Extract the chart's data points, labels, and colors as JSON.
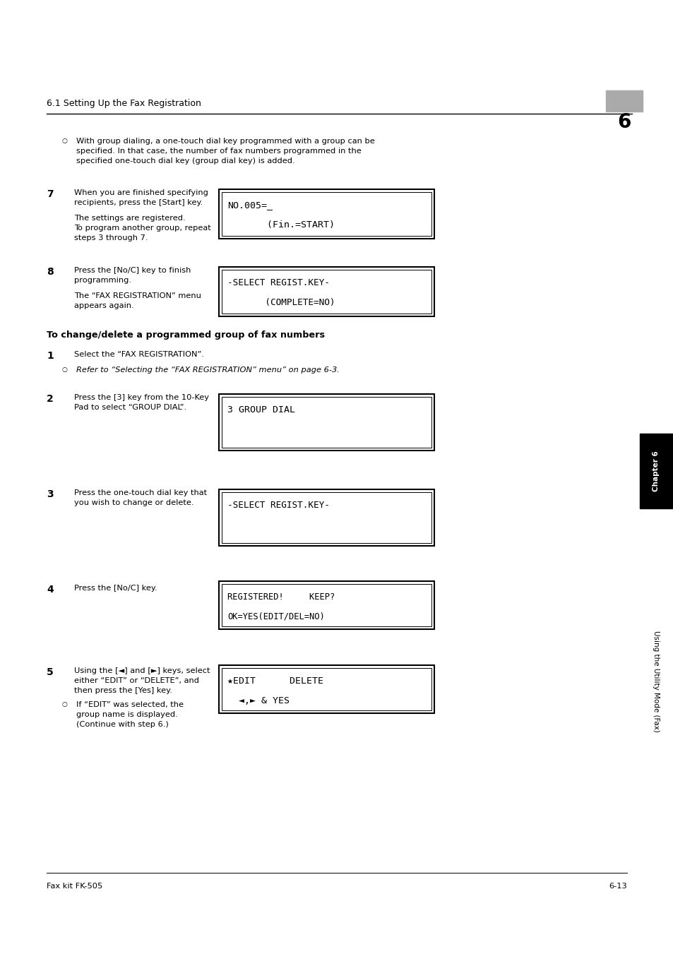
{
  "bg_color": "#ffffff",
  "page_width": 9.54,
  "page_height": 13.51,
  "header_text": "6.1 Setting Up the Fax Registration",
  "header_num": "6",
  "header_num_bg": "#b0b0b0",
  "bullet_text_1a": "With group dialing, a one-touch dial key programmed with a group can be",
  "bullet_text_1b": "specified. In that case, the number of fax numbers programmed in the",
  "bullet_text_1c": "specified one-touch dial key (group dial key) is added.",
  "step7_num": "7",
  "step7_text_a": "When you are finished specifying",
  "step7_text_b": "recipients, press the [Start] key.",
  "step7_text_c": "The settings are registered.",
  "step7_text_d": "To program another group, repeat",
  "step7_text_e": "steps 3 through 7.",
  "box1_line1": "NO.005=_",
  "box1_line2": "       (Fin.=START)",
  "step8_num": "8",
  "step8_text_a": "Press the [No/C] key to finish",
  "step8_text_b": "programming.",
  "step8_text_c": "The “FAX REGISTRATION” menu",
  "step8_text_d": "appears again.",
  "box2_line1": "-SELECT REGIST.KEY-",
  "box2_line2": "       (COMPLETE=NO)",
  "section_title": "To change/delete a programmed group of fax numbers",
  "step1_num": "1",
  "step1_text": "Select the “FAX REGISTRATION”.",
  "step1_bullet": "Refer to “Selecting the “FAX REGISTRATION” menu” on page 6-3.",
  "step2_num": "2",
  "step2_text_a": "Press the [3] key from the 10-Key",
  "step2_text_b": "Pad to select “GROUP DIAL”.",
  "box3_line1": "3 GROUP DIAL",
  "step3_num": "3",
  "step3_text_a": "Press the one-touch dial key that",
  "step3_text_b": "you wish to change or delete.",
  "box4_line1": "-SELECT REGIST.KEY-",
  "step4_num": "4",
  "step4_text": "Press the [No/C] key.",
  "box5_line1": "REGISTERED!     KEEP?",
  "box5_line2": "OK=YES(EDIT/DEL=NO)",
  "step5_num": "5",
  "step5_text_a": "Using the [◄] and [►] keys, select",
  "step5_text_b": "either “EDIT” or “DELETE”, and",
  "step5_text_c": "then press the [Yes] key.",
  "step5_bullet_a": "If “EDIT” was selected, the",
  "step5_bullet_b": "group name is displayed.",
  "step5_bullet_c": "(Continue with step 6.)",
  "box6_line1": "★EDIT      DELETE",
  "box6_line2": "  ◄,► & YES",
  "footer_left": "Fax kit FK-505",
  "footer_right": "6-13",
  "sidebar_chapter": "Chapter 6",
  "sidebar_using": "Using the Utility Mode (Fax)"
}
